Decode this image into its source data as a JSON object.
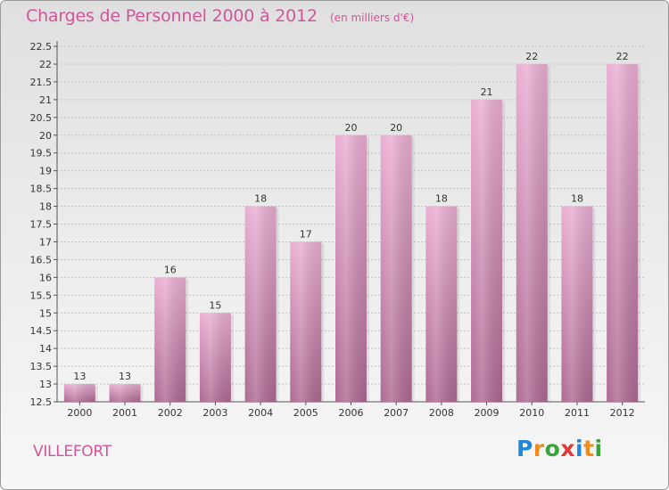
{
  "header": {
    "title": "Charges de Personnel 2000 à 2012",
    "subtitle": "(en milliers d'€)"
  },
  "footer": {
    "commune": "VILLEFORT",
    "logo_text": "Proxiti",
    "logo_colors": [
      "#1e88d8",
      "#f08c1a",
      "#3aa43a",
      "#e03a3a",
      "#1e88d8",
      "#f08c1a",
      "#3aa43a"
    ]
  },
  "colors": {
    "title": "#d2559a",
    "bar_top": "#eaaed2",
    "bar_bottom": "#ad6a92"
  },
  "chart_data": {
    "type": "bar",
    "title": "Charges de Personnel 2000 à 2012",
    "xlabel": "",
    "ylabel": "",
    "categories": [
      "2000",
      "2001",
      "2002",
      "2003",
      "2004",
      "2005",
      "2006",
      "2007",
      "2008",
      "2009",
      "2010",
      "2011",
      "2012"
    ],
    "values": [
      13,
      13,
      16,
      15,
      18,
      17,
      20,
      20,
      18,
      21,
      22,
      18,
      22
    ],
    "ylim": [
      12.5,
      22.5
    ],
    "yticks": [
      "12.5",
      "13",
      "13.5",
      "14",
      "14.5",
      "15",
      "15.5",
      "16",
      "16.5",
      "17",
      "17.5",
      "18",
      "18.5",
      "19",
      "19.5",
      "20",
      "20.5",
      "21",
      "21.5",
      "22",
      "22.5"
    ],
    "grid": true,
    "data_labels": true
  }
}
